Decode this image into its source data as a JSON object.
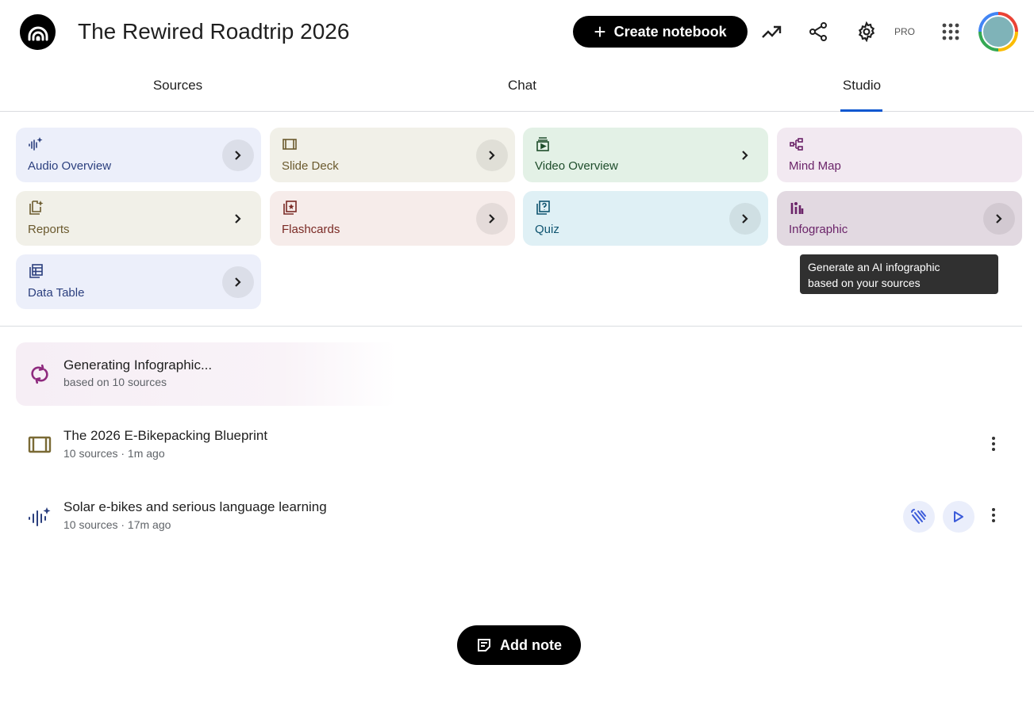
{
  "header": {
    "title": "The Rewired Roadtrip 2026",
    "create_label": "Create notebook",
    "pro_label": "PRO"
  },
  "tabs": [
    {
      "label": "Sources"
    },
    {
      "label": "Chat"
    },
    {
      "label": "Studio",
      "active": true
    }
  ],
  "tiles": [
    {
      "label": "Audio Overview",
      "bg": "#eceffa",
      "color": "#2b3f7e",
      "icon": "audio-waveform-sparkle-icon",
      "chevron": "circle"
    },
    {
      "label": "Slide Deck",
      "bg": "#f1f0e8",
      "color": "#6b5a2e",
      "icon": "slides-icon",
      "chevron": "circle"
    },
    {
      "label": "Video Overview",
      "bg": "#e3f1e6",
      "color": "#1e4d2b",
      "icon": "video-icon",
      "chevron": "plain"
    },
    {
      "label": "Mind Map",
      "bg": "#f2e9f1",
      "color": "#6b2469",
      "icon": "mind-map-icon",
      "chevron": "none"
    },
    {
      "label": "Reports",
      "bg": "#f1f0e8",
      "color": "#6b5a2e",
      "icon": "reports-icon",
      "chevron": "plain"
    },
    {
      "label": "Flashcards",
      "bg": "#f6ecea",
      "color": "#7a2a25",
      "icon": "flashcards-icon",
      "chevron": "circle"
    },
    {
      "label": "Quiz",
      "bg": "#dff0f5",
      "color": "#0f5470",
      "icon": "quiz-icon",
      "chevron": "circle"
    },
    {
      "label": "Infographic",
      "bg": "#e2d9e1",
      "color": "#6b2469",
      "icon": "infographic-icon",
      "chevron": "circle"
    },
    {
      "label": "Data Table",
      "bg": "#eceffa",
      "color": "#2b3f7e",
      "icon": "data-table-icon",
      "chevron": "circle"
    }
  ],
  "tooltip": {
    "line1": "Generate an AI infographic",
    "line2": "based on your sources"
  },
  "generating": {
    "title": "Generating Infographic...",
    "subtitle": "based on 10 sources"
  },
  "artifacts": [
    {
      "title": "The 2026 E-Bikepacking Blueprint",
      "meta": "10 sources · 1m ago",
      "icon": "slides-icon"
    },
    {
      "title": "Solar e-bikes and serious language learning",
      "meta": "10 sources · 17m ago",
      "icon": "audio-waveform-sparkle-icon"
    }
  ],
  "add_note_label": "Add note"
}
